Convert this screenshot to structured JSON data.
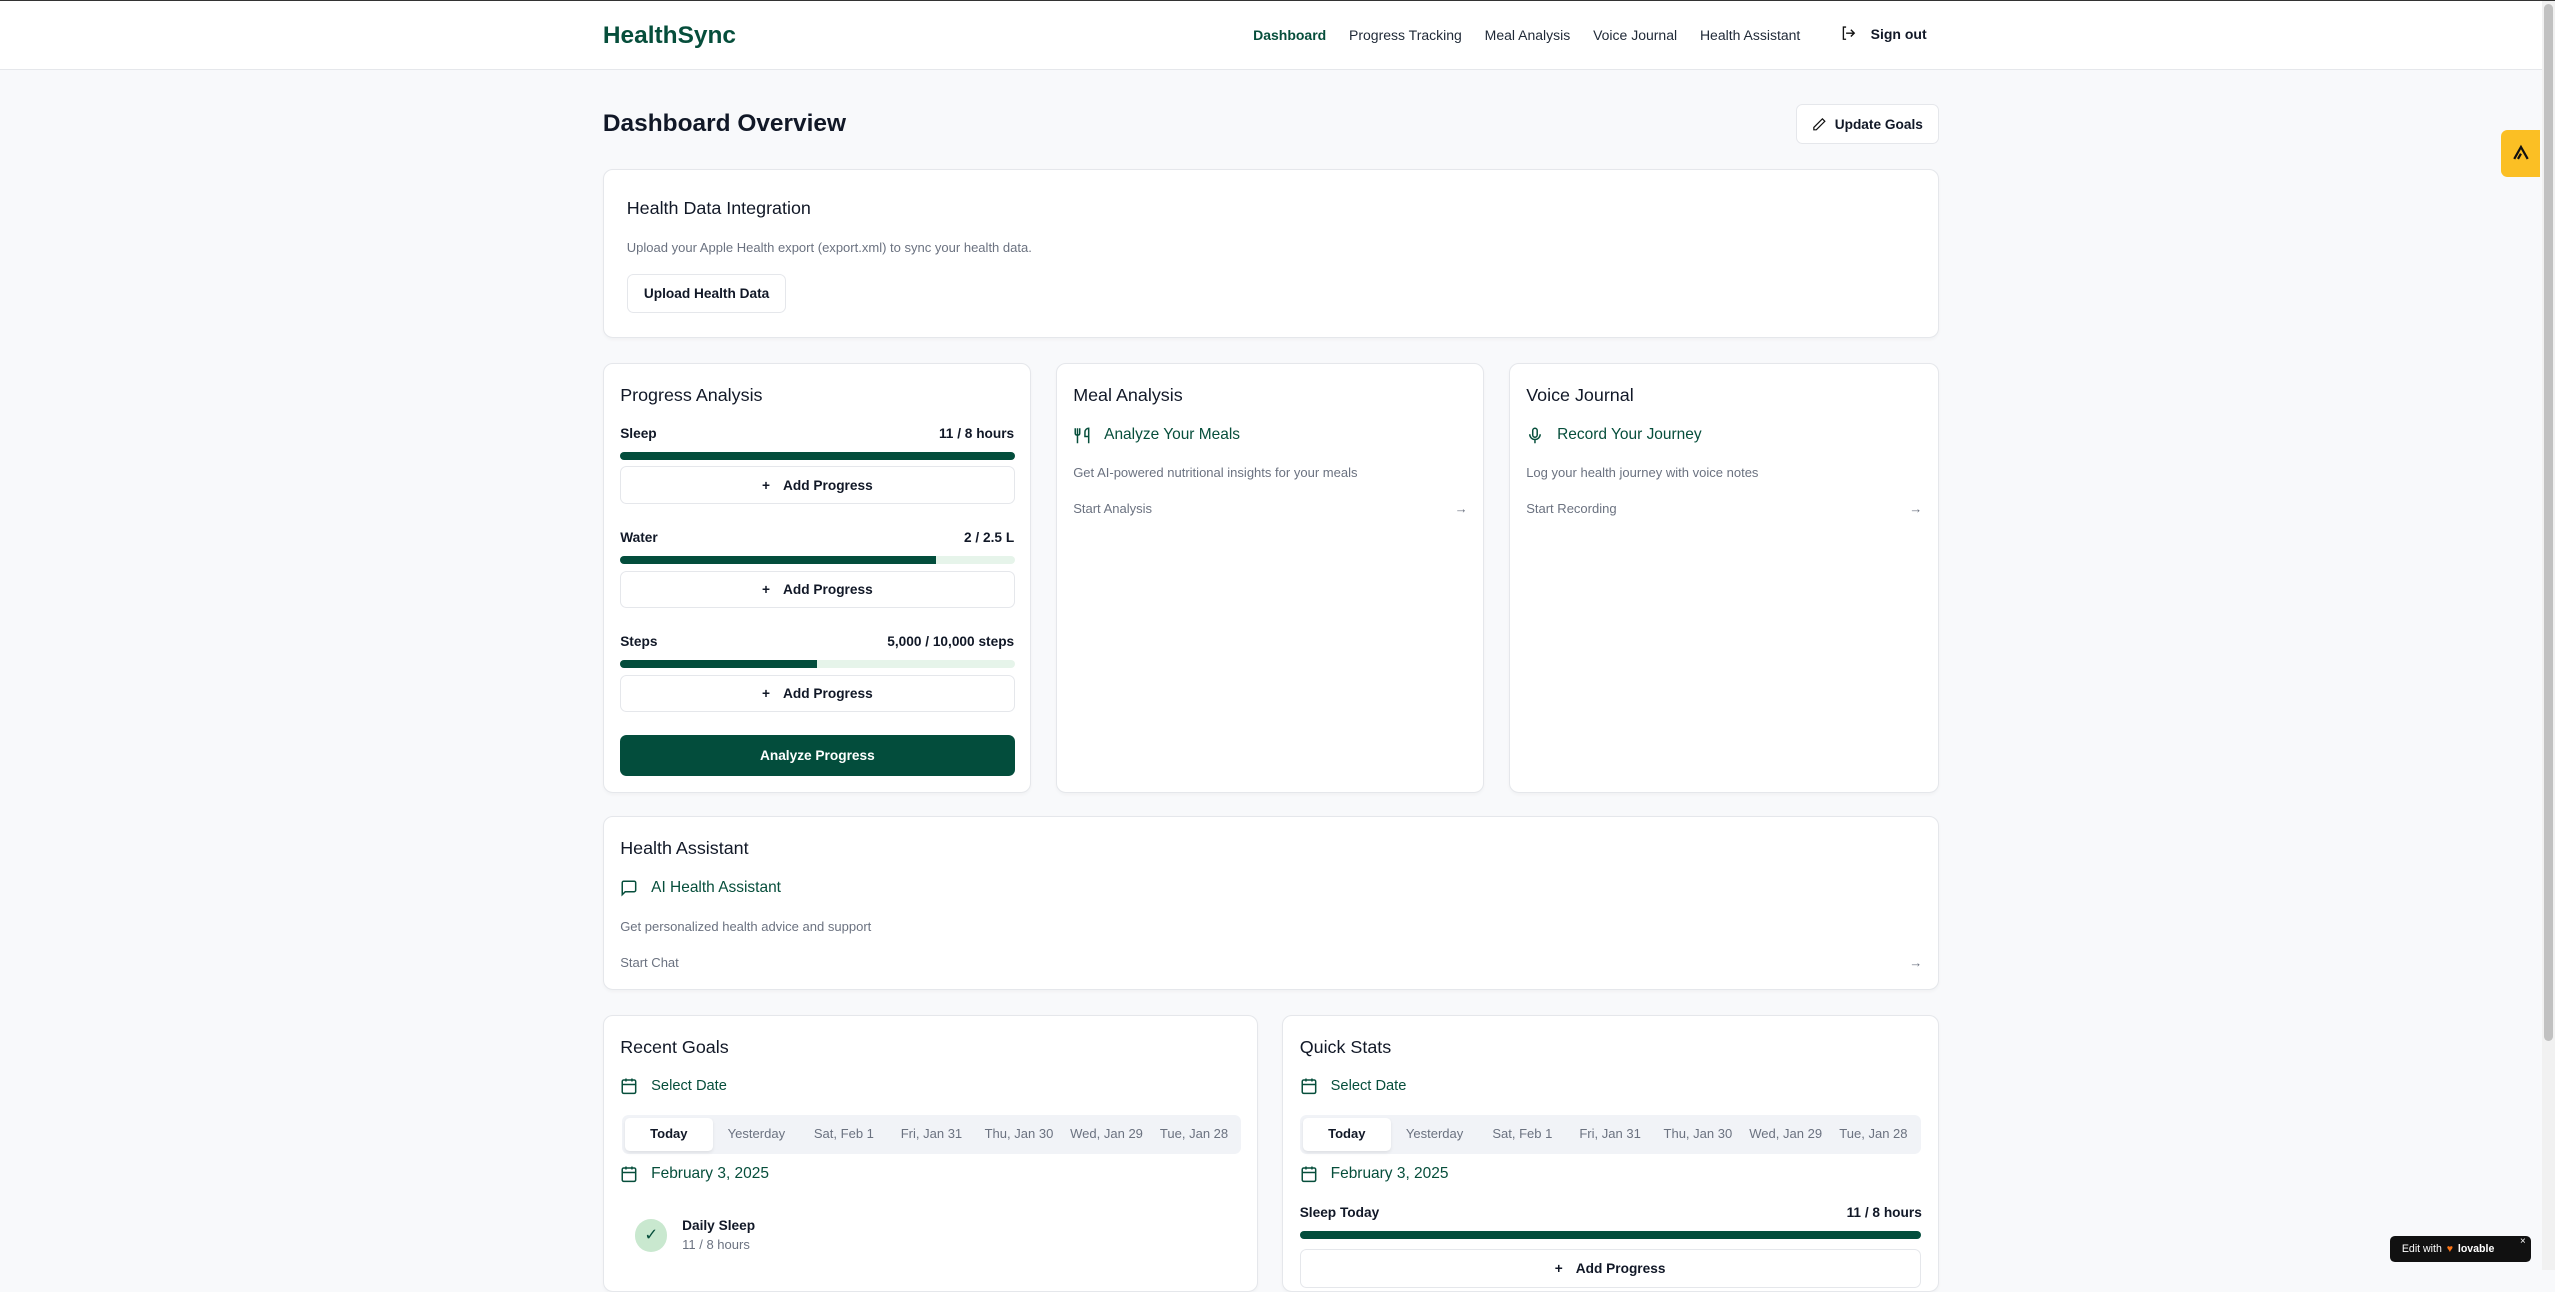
{
  "header": {
    "logo": "HealthSync",
    "nav": [
      "Dashboard",
      "Progress Tracking",
      "Meal Analysis",
      "Voice Journal",
      "Health Assistant"
    ],
    "active": "Dashboard",
    "sign_out": "Sign out"
  },
  "page": {
    "title": "Dashboard Overview",
    "update_goals": "Update Goals"
  },
  "integration": {
    "title": "Health Data Integration",
    "description": "Upload your Apple Health export (export.xml) to sync your health data.",
    "button": "Upload Health Data"
  },
  "progress": {
    "title": "Progress Analysis",
    "add_label": "Add Progress",
    "analyze": "Analyze Progress",
    "items": [
      {
        "label": "Sleep",
        "value": "11 / 8 hours",
        "fraction": 1.0
      },
      {
        "label": "Water",
        "value": "2 / 2.5 L",
        "fraction": 0.8
      },
      {
        "label": "Steps",
        "value": "5,000 / 10,000 steps",
        "fraction": 0.5
      }
    ]
  },
  "meal": {
    "title": "Meal Analysis",
    "heading": "Analyze Your Meals",
    "description": "Get AI-powered nutritional insights for your meals",
    "link": "Start Analysis"
  },
  "voice": {
    "title": "Voice Journal",
    "heading": "Record Your Journey",
    "description": "Log your health journey with voice notes",
    "link": "Start Recording"
  },
  "assistant": {
    "title": "Health Assistant",
    "heading": "AI Health Assistant",
    "description": "Get personalized health advice and support",
    "link": "Start Chat"
  },
  "date_tabs": [
    "Today",
    "Yesterday",
    "Sat, Feb 1",
    "Fri, Jan 31",
    "Thu, Jan 30",
    "Wed, Jan 29",
    "Tue, Jan 28"
  ],
  "recent_goals": {
    "title": "Recent Goals",
    "select_date": "Select Date",
    "date": "February 3, 2025",
    "goal": {
      "name": "Daily Sleep",
      "value": "11 / 8 hours"
    }
  },
  "quick_stats": {
    "title": "Quick Stats",
    "select_date": "Select Date",
    "date": "February 3, 2025",
    "stat_label": "Sleep Today",
    "stat_value": "11 / 8 hours",
    "stat_fraction": 1.0,
    "add_label": "Add Progress"
  },
  "badge": {
    "text": "Edit with",
    "brand": "lovable"
  },
  "colors": {
    "primary": "#034d3c",
    "track": "#e6f4ea",
    "accent_tab": "#fbbf24"
  }
}
